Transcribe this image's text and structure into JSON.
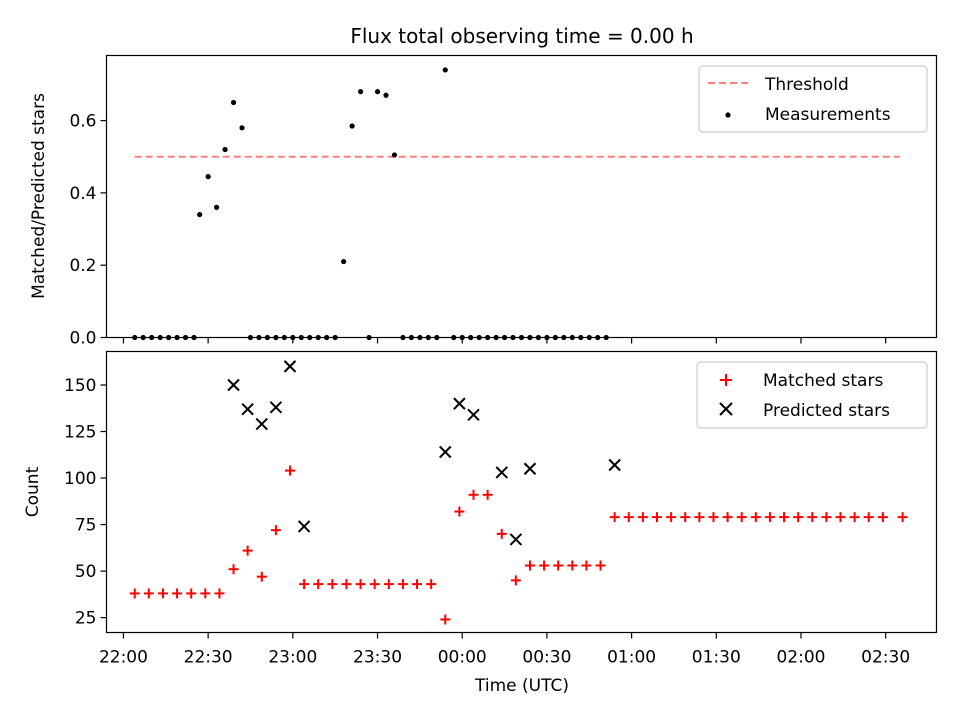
{
  "chart_data": [
    {
      "type": "scatter",
      "title": "Flux total observing time = 0.00 h",
      "xlabel": "",
      "ylabel": "Matched/Predicted stars",
      "xlim": [
        "21:54",
        "02:48"
      ],
      "ylim": [
        0,
        0.78
      ],
      "yticks": [
        0.0,
        0.2,
        0.4,
        0.6
      ],
      "ytick_labels": [
        "0.0",
        "0.2",
        "0.4",
        "0.6"
      ],
      "grid": false,
      "legend_position": "top-right",
      "series": [
        {
          "name": "Threshold",
          "style": "dashed-line",
          "color": "#ff7f7f",
          "x": [
            "22:04",
            "02:35"
          ],
          "y": [
            0.5,
            0.5
          ]
        },
        {
          "name": "Measurements",
          "style": "dot",
          "color": "#000000",
          "points": [
            [
              "22:04",
              0.0
            ],
            [
              "22:07",
              0.0
            ],
            [
              "22:10",
              0.0
            ],
            [
              "22:13",
              0.0
            ],
            [
              "22:16",
              0.0
            ],
            [
              "22:19",
              0.0
            ],
            [
              "22:22",
              0.0
            ],
            [
              "22:25",
              0.0
            ],
            [
              "22:27",
              0.34
            ],
            [
              "22:30",
              0.445
            ],
            [
              "22:33",
              0.36
            ],
            [
              "22:36",
              0.52
            ],
            [
              "22:39",
              0.65
            ],
            [
              "22:42",
              0.58
            ],
            [
              "22:45",
              0.0
            ],
            [
              "22:48",
              0.0
            ],
            [
              "22:51",
              0.0
            ],
            [
              "22:54",
              0.0
            ],
            [
              "22:57",
              0.0
            ],
            [
              "23:00",
              0.0
            ],
            [
              "23:03",
              0.0
            ],
            [
              "23:06",
              0.0
            ],
            [
              "23:09",
              0.0
            ],
            [
              "23:12",
              0.0
            ],
            [
              "23:15",
              0.0
            ],
            [
              "23:18",
              0.21
            ],
            [
              "23:21",
              0.585
            ],
            [
              "23:24",
              0.68
            ],
            [
              "23:27",
              0.0
            ],
            [
              "23:30",
              0.68
            ],
            [
              "23:33",
              0.67
            ],
            [
              "23:36",
              0.505
            ],
            [
              "23:39",
              0.0
            ],
            [
              "23:42",
              0.0
            ],
            [
              "23:45",
              0.0
            ],
            [
              "23:48",
              0.0
            ],
            [
              "23:51",
              0.0
            ],
            [
              "23:54",
              0.74
            ],
            [
              "23:57",
              0.0
            ],
            [
              "00:00",
              0.0
            ],
            [
              "00:03",
              0.0
            ],
            [
              "00:06",
              0.0
            ],
            [
              "00:09",
              0.0
            ],
            [
              "00:12",
              0.0
            ],
            [
              "00:15",
              0.0
            ],
            [
              "00:18",
              0.0
            ],
            [
              "00:21",
              0.0
            ],
            [
              "00:24",
              0.0
            ],
            [
              "00:27",
              0.0
            ],
            [
              "00:30",
              0.0
            ],
            [
              "00:33",
              0.0
            ],
            [
              "00:36",
              0.0
            ],
            [
              "00:39",
              0.0
            ],
            [
              "00:42",
              0.0
            ],
            [
              "00:45",
              0.0
            ],
            [
              "00:48",
              0.0
            ],
            [
              "00:51",
              0.0
            ]
          ]
        }
      ]
    },
    {
      "type": "scatter",
      "title": "",
      "xlabel": "Time (UTC)",
      "ylabel": "Count",
      "xlim": [
        "21:54",
        "02:48"
      ],
      "ylim": [
        17,
        168
      ],
      "xticks": [
        "22:00",
        "22:30",
        "23:00",
        "23:30",
        "00:00",
        "00:30",
        "01:00",
        "01:30",
        "02:00",
        "02:30"
      ],
      "yticks": [
        25,
        50,
        75,
        100,
        125,
        150
      ],
      "ytick_labels": [
        "25",
        "50",
        "75",
        "100",
        "125",
        "150"
      ],
      "grid": false,
      "legend_position": "top-right",
      "series": [
        {
          "name": "Matched stars",
          "style": "plus",
          "color": "#ff0000",
          "points": [
            [
              "22:04",
              38
            ],
            [
              "22:09",
              38
            ],
            [
              "22:14",
              38
            ],
            [
              "22:19",
              38
            ],
            [
              "22:24",
              38
            ],
            [
              "22:29",
              38
            ],
            [
              "22:34",
              38
            ],
            [
              "22:39",
              51
            ],
            [
              "22:44",
              61
            ],
            [
              "22:49",
              47
            ],
            [
              "22:54",
              72
            ],
            [
              "22:59",
              104
            ],
            [
              "23:04",
              43
            ],
            [
              "23:09",
              43
            ],
            [
              "23:14",
              43
            ],
            [
              "23:19",
              43
            ],
            [
              "23:24",
              43
            ],
            [
              "23:29",
              43
            ],
            [
              "23:34",
              43
            ],
            [
              "23:39",
              43
            ],
            [
              "23:44",
              43
            ],
            [
              "23:49",
              43
            ],
            [
              "23:54",
              24
            ],
            [
              "23:59",
              82
            ],
            [
              "00:04",
              91
            ],
            [
              "00:09",
              91
            ],
            [
              "00:14",
              70
            ],
            [
              "00:19",
              45
            ],
            [
              "00:24",
              53
            ],
            [
              "00:29",
              53
            ],
            [
              "00:34",
              53
            ],
            [
              "00:39",
              53
            ],
            [
              "00:44",
              53
            ],
            [
              "00:49",
              53
            ],
            [
              "00:54",
              79
            ],
            [
              "00:59",
              79
            ],
            [
              "01:04",
              79
            ],
            [
              "01:09",
              79
            ],
            [
              "01:14",
              79
            ],
            [
              "01:19",
              79
            ],
            [
              "01:24",
              79
            ],
            [
              "01:29",
              79
            ],
            [
              "01:34",
              79
            ],
            [
              "01:39",
              79
            ],
            [
              "01:44",
              79
            ],
            [
              "01:49",
              79
            ],
            [
              "01:54",
              79
            ],
            [
              "01:59",
              79
            ],
            [
              "02:04",
              79
            ],
            [
              "02:09",
              79
            ],
            [
              "02:14",
              79
            ],
            [
              "02:19",
              79
            ],
            [
              "02:24",
              79
            ],
            [
              "02:29",
              79
            ],
            [
              "02:36",
              79
            ]
          ]
        },
        {
          "name": "Predicted stars",
          "style": "cross",
          "color": "#000000",
          "points": [
            [
              "22:39",
              150
            ],
            [
              "22:44",
              137
            ],
            [
              "22:49",
              129
            ],
            [
              "22:54",
              138
            ],
            [
              "22:59",
              160
            ],
            [
              "23:04",
              74
            ],
            [
              "23:54",
              114
            ],
            [
              "23:59",
              140
            ],
            [
              "00:04",
              134
            ],
            [
              "00:14",
              103
            ],
            [
              "00:19",
              67
            ],
            [
              "00:24",
              105
            ],
            [
              "00:54",
              107
            ]
          ]
        }
      ]
    }
  ]
}
